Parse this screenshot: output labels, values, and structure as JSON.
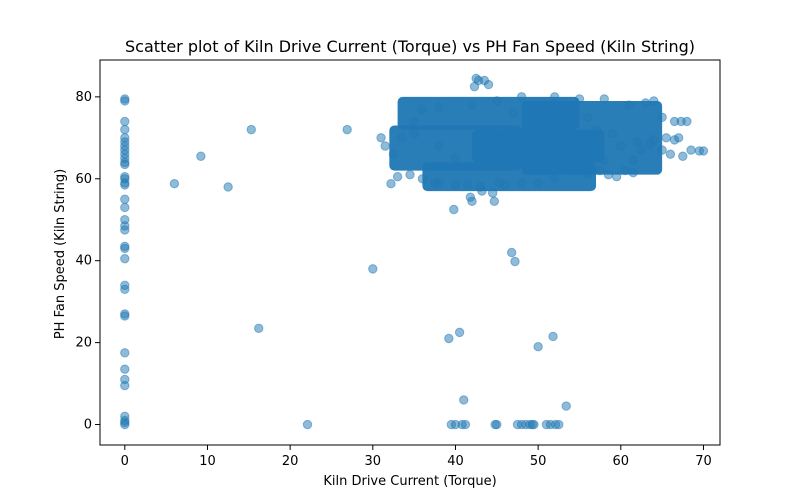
{
  "chart_data": {
    "type": "scatter",
    "title": "Scatter plot of Kiln Drive Current (Torque) vs PH Fan Speed  (Kiln String)",
    "xlabel": "Kiln Drive Current (Torque)",
    "ylabel": "PH Fan Speed  (Kiln String)",
    "xlim": [
      -3,
      72
    ],
    "ylim": [
      -5,
      89
    ],
    "xticks": [
      0,
      10,
      20,
      30,
      40,
      50,
      60,
      70
    ],
    "yticks": [
      0,
      20,
      40,
      60,
      80
    ],
    "grid": false,
    "marker_color": "#1f77b4",
    "marker_alpha": 0.5,
    "dense_regions": [
      {
        "x": [
          33,
          55
        ],
        "y": [
          72,
          80
        ]
      },
      {
        "x": [
          32,
          48
        ],
        "y": [
          62,
          73
        ]
      },
      {
        "x": [
          36,
          57
        ],
        "y": [
          57,
          64
        ]
      },
      {
        "x": [
          48,
          65
        ],
        "y": [
          61,
          79
        ]
      },
      {
        "x": [
          42,
          58
        ],
        "y": [
          64,
          72
        ]
      }
    ],
    "points": [
      [
        0,
        0
      ],
      [
        0,
        0.5
      ],
      [
        0,
        1
      ],
      [
        0,
        2
      ],
      [
        0,
        9.5
      ],
      [
        0,
        11
      ],
      [
        0,
        13.5
      ],
      [
        0,
        17.5
      ],
      [
        0,
        26.5
      ],
      [
        0,
        27
      ],
      [
        0,
        33
      ],
      [
        0,
        34
      ],
      [
        0,
        40.5
      ],
      [
        0,
        43
      ],
      [
        0,
        43.5
      ],
      [
        0,
        47.5
      ],
      [
        0,
        48.5
      ],
      [
        0,
        50
      ],
      [
        0,
        53
      ],
      [
        0,
        55
      ],
      [
        0,
        58.5
      ],
      [
        0,
        59
      ],
      [
        0,
        60
      ],
      [
        0,
        60.5
      ],
      [
        0,
        63.5
      ],
      [
        0,
        64
      ],
      [
        0,
        65
      ],
      [
        0,
        66
      ],
      [
        0,
        67
      ],
      [
        0,
        68
      ],
      [
        0,
        69
      ],
      [
        0,
        70
      ],
      [
        0,
        72
      ],
      [
        0,
        74
      ],
      [
        0,
        79
      ],
      [
        0,
        79.5
      ],
      [
        6,
        58.8
      ],
      [
        9.2,
        65.5
      ],
      [
        12.5,
        58
      ],
      [
        15.3,
        72
      ],
      [
        16.2,
        23.5
      ],
      [
        22.1,
        0
      ],
      [
        26.9,
        72
      ],
      [
        30,
        38
      ],
      [
        31,
        70
      ],
      [
        32.2,
        58.8
      ],
      [
        38,
        59
      ],
      [
        39.2,
        21
      ],
      [
        39.5,
        0
      ],
      [
        39.8,
        52.5
      ],
      [
        40,
        0
      ],
      [
        40.5,
        22.5
      ],
      [
        40.8,
        0
      ],
      [
        41,
        6
      ],
      [
        41.2,
        0
      ],
      [
        41.5,
        58.5
      ],
      [
        41.8,
        55.5
      ],
      [
        42,
        54.5
      ],
      [
        42.3,
        82.5
      ],
      [
        42.5,
        84.5
      ],
      [
        42.8,
        84
      ],
      [
        43.2,
        57
      ],
      [
        43.5,
        84
      ],
      [
        44,
        83
      ],
      [
        44.5,
        56.5
      ],
      [
        44.7,
        54.5
      ],
      [
        44.8,
        0
      ],
      [
        45,
        0
      ],
      [
        45.3,
        59
      ],
      [
        46.8,
        42
      ],
      [
        47.2,
        39.8
      ],
      [
        47.5,
        0
      ],
      [
        48,
        0
      ],
      [
        48.5,
        0
      ],
      [
        49,
        0
      ],
      [
        49.3,
        0
      ],
      [
        49.5,
        0
      ],
      [
        50,
        19
      ],
      [
        51,
        0
      ],
      [
        51.5,
        0
      ],
      [
        51.8,
        21.5
      ],
      [
        52.1,
        0
      ],
      [
        52.5,
        0
      ],
      [
        53.4,
        4.5
      ],
      [
        54,
        62
      ],
      [
        56,
        61
      ],
      [
        57.5,
        62
      ],
      [
        58.5,
        61
      ],
      [
        59.5,
        60.5
      ],
      [
        60.5,
        62
      ],
      [
        61.5,
        61.5
      ],
      [
        61.5,
        64.5
      ],
      [
        62.5,
        67
      ],
      [
        63.5,
        68.5
      ],
      [
        64,
        69.5
      ],
      [
        65,
        67
      ],
      [
        65.5,
        70
      ],
      [
        66,
        66
      ],
      [
        66.5,
        69.5
      ],
      [
        67,
        70
      ],
      [
        67.5,
        65.5
      ],
      [
        66.5,
        74
      ],
      [
        67.3,
        74
      ],
      [
        68,
        74
      ],
      [
        68.5,
        67
      ],
      [
        69.5,
        66.8
      ],
      [
        70,
        66.8
      ],
      [
        65,
        75
      ],
      [
        64,
        79
      ],
      [
        63,
        78.5
      ],
      [
        61,
        78
      ],
      [
        58,
        79.5
      ],
      [
        55,
        79.5
      ],
      [
        52,
        80
      ],
      [
        48,
        80
      ],
      [
        45,
        79
      ],
      [
        42,
        78
      ],
      [
        38,
        77.5
      ],
      [
        36,
        77
      ],
      [
        35,
        74
      ],
      [
        33.5,
        70
      ],
      [
        32.5,
        66
      ],
      [
        31.5,
        68
      ],
      [
        33,
        60.5
      ],
      [
        34.5,
        61
      ],
      [
        36,
        60
      ],
      [
        37.5,
        59
      ],
      [
        40,
        58.5
      ],
      [
        43,
        58
      ],
      [
        46,
        58.5
      ],
      [
        48,
        59
      ],
      [
        50,
        59
      ],
      [
        52,
        60
      ],
      [
        54,
        63
      ],
      [
        56,
        63.5
      ],
      [
        58,
        64.5
      ],
      [
        60,
        68
      ],
      [
        62,
        69
      ],
      [
        59,
        71
      ],
      [
        57,
        72
      ],
      [
        56,
        75
      ],
      [
        45,
        70
      ],
      [
        38,
        68
      ],
      [
        40,
        65
      ],
      [
        50,
        66
      ],
      [
        53,
        74
      ],
      [
        47,
        76
      ],
      [
        35,
        71
      ]
    ]
  }
}
